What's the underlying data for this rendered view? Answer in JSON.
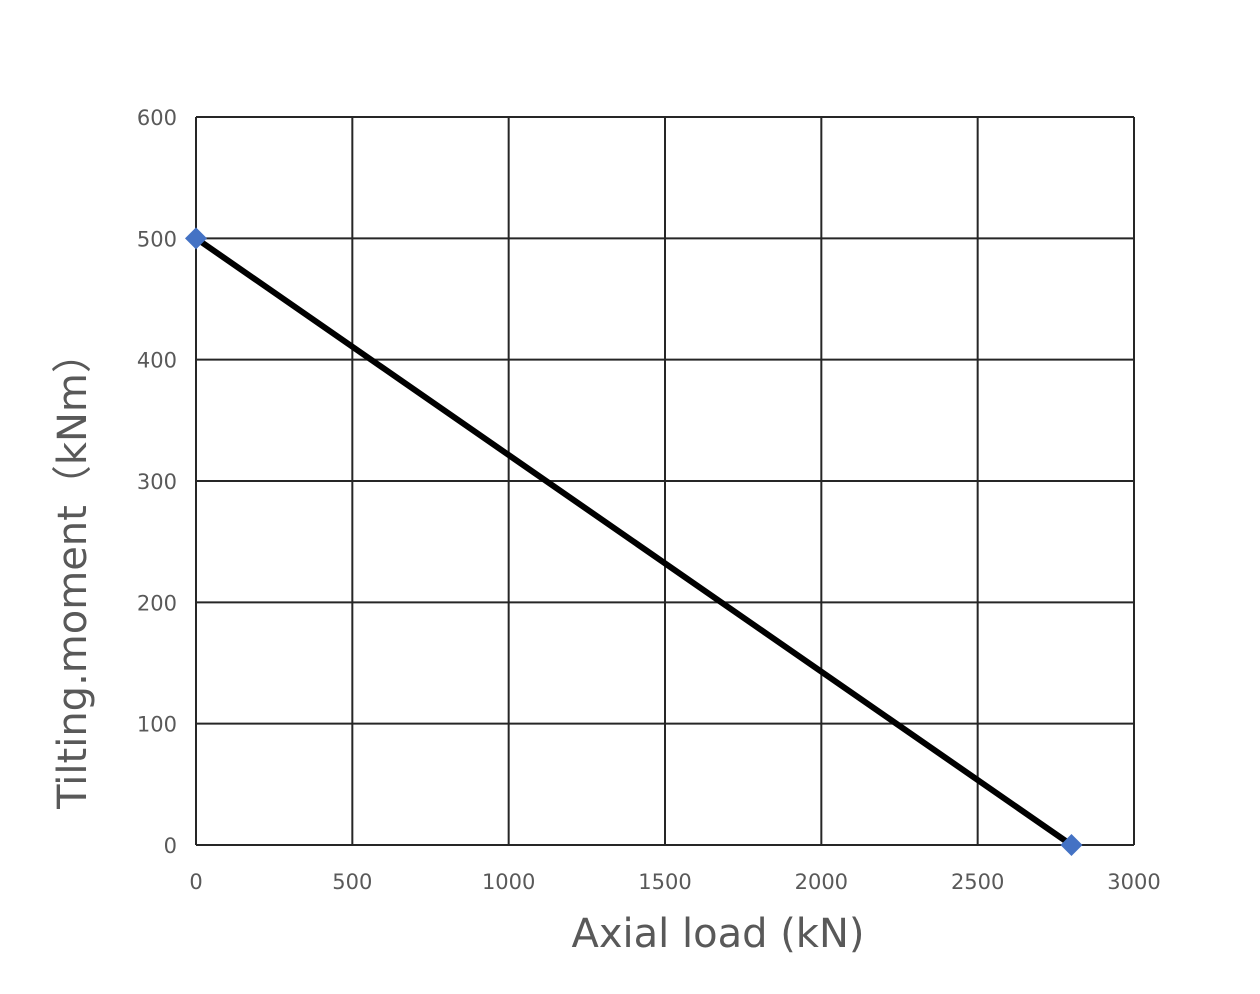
{
  "chart_data": {
    "type": "line",
    "title": "",
    "xlabel": "Axial load (kN)",
    "ylabel": "Tilting.moment（kNm）",
    "xlim": [
      0,
      3000
    ],
    "ylim": [
      0,
      600
    ],
    "xticks": [
      "0",
      "500",
      "1000",
      "1500",
      "2000",
      "2500",
      "3000"
    ],
    "yticks": [
      "0",
      "100",
      "200",
      "300",
      "400",
      "500",
      "600"
    ],
    "grid": true,
    "legend": "none",
    "series": [
      {
        "x": [
          0,
          2800
        ],
        "y": [
          500,
          0
        ],
        "line_color": "#000000",
        "marker": "diamond",
        "marker_color": "#4472C4"
      }
    ]
  }
}
